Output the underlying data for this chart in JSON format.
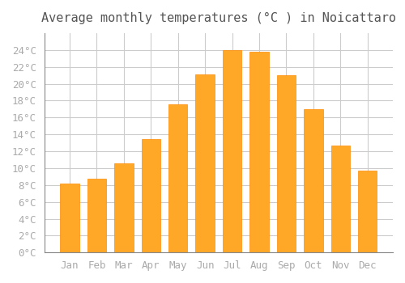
{
  "title": "Average monthly temperatures (°C ) in Noicattaro",
  "months": [
    "Jan",
    "Feb",
    "Mar",
    "Apr",
    "May",
    "Jun",
    "Jul",
    "Aug",
    "Sep",
    "Oct",
    "Nov",
    "Dec"
  ],
  "temperatures": [
    8.2,
    8.7,
    10.6,
    13.4,
    17.6,
    21.1,
    24.0,
    23.8,
    21.0,
    17.0,
    12.7,
    9.7
  ],
  "bar_color": "#FFA726",
  "bar_edge_color": "#FF8C00",
  "background_color": "#FFFFFF",
  "grid_color": "#CCCCCC",
  "tick_label_color": "#AAAAAA",
  "title_color": "#555555",
  "ylim": [
    0,
    26
  ],
  "yticks": [
    0,
    2,
    4,
    6,
    8,
    10,
    12,
    14,
    16,
    18,
    20,
    22,
    24
  ],
  "title_fontsize": 11,
  "tick_fontsize": 9
}
